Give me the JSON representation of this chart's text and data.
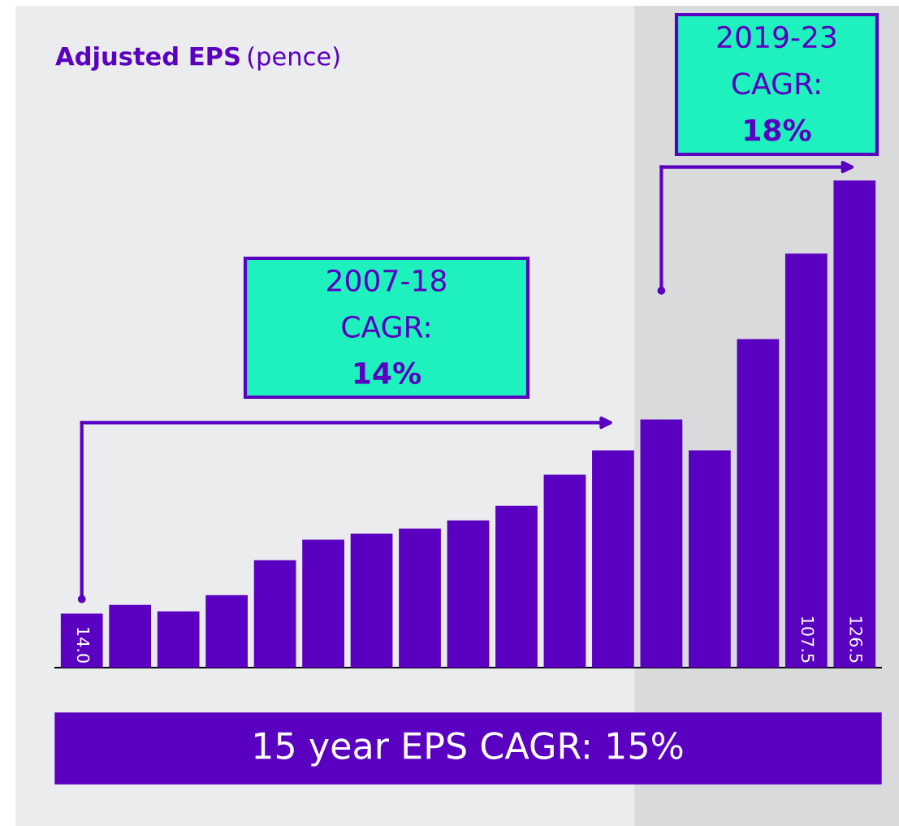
{
  "chart_data": {
    "type": "bar",
    "title": "Adjusted EPS",
    "subtitle": "(pence)",
    "categories": [
      null,
      null,
      null,
      null,
      null,
      null,
      null,
      null,
      null,
      null,
      null,
      null,
      null,
      null,
      null,
      null,
      null
    ],
    "values": [
      14.0,
      16.3,
      14.6,
      18.8,
      27.9,
      33.2,
      34.8,
      36.1,
      38.2,
      42.0,
      50.1,
      56.4,
      64.4,
      56.4,
      85.3,
      107.5,
      126.5
    ],
    "value_labels": [
      "14.0",
      null,
      null,
      null,
      null,
      null,
      null,
      null,
      null,
      null,
      null,
      null,
      null,
      null,
      null,
      "107.5",
      "126.5"
    ],
    "color": "#5a00c0",
    "annotations": [
      "2007-18\nCAGR:\n14%",
      "2019-23\nCAGR:\n18%",
      "15 year EPS CAGR: 15%"
    ],
    "legend": false
  }
}
